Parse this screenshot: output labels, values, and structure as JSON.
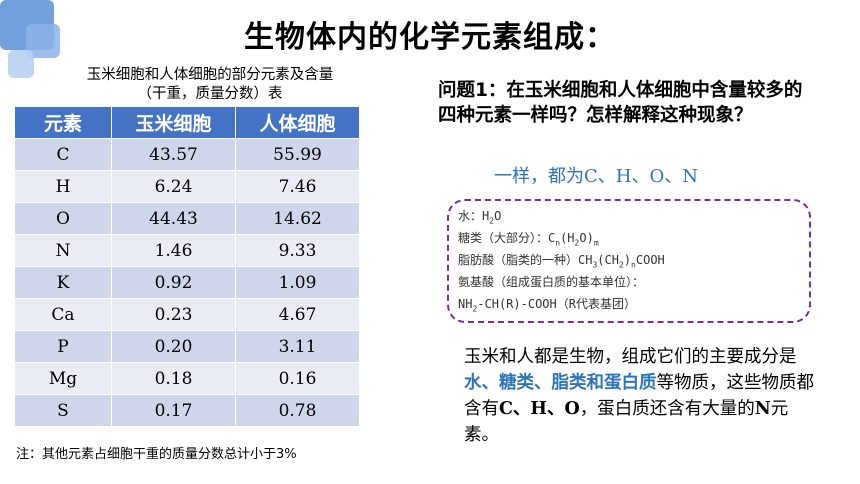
{
  "title": "生物体内的化学元素组成：",
  "table": {
    "caption_line1": "玉米细胞和人体细胞的部分元素及含量",
    "caption_line2": "（干重，质量分数）表",
    "headers": [
      "元素",
      "玉米细胞",
      "人体细胞"
    ],
    "rows": [
      [
        "C",
        "43.57",
        "55.99"
      ],
      [
        "H",
        "6.24",
        "7.46"
      ],
      [
        "O",
        "44.43",
        "14.62"
      ],
      [
        "N",
        "1.46",
        "9.33"
      ],
      [
        "K",
        "0.92",
        "1.09"
      ],
      [
        "Ca",
        "0.23",
        "4.67"
      ],
      [
        "P",
        "0.20",
        "3.11"
      ],
      [
        "Mg",
        "0.18",
        "0.16"
      ],
      [
        "S",
        "0.17",
        "0.78"
      ]
    ],
    "header_color": "#4472c4"
  },
  "note": "注：其他元素占细胞干重的质量分数总计小于3%",
  "question": "问题1：在玉米细胞和人体细胞中含量较多的四种元素一样吗？怎样解释这种现象？",
  "answer": "一样，都为C、H、O、N",
  "formulas": {
    "water_label": "水：",
    "water_formula": "H",
    "water_sub": "2",
    "water_tail": "O",
    "sugar_label": "糖类（大部分）：",
    "sugar_a": "C",
    "sugar_sub_n": "n",
    "sugar_b": "(H",
    "sugar_sub_2": "2",
    "sugar_c": "O)",
    "sugar_sub_m": "m",
    "fat_label": "脂肪酸（脂类的一种）",
    "fat_a": "CH",
    "fat_sub_3": "3",
    "fat_b": "(CH",
    "fat_sub_2": "2",
    "fat_c": ")",
    "fat_sub_n": "n",
    "fat_d": "COOH",
    "amino_label": "氨基酸（组成蛋白质的基本单位）：",
    "amino_a": "NH",
    "amino_sub": "2",
    "amino_b": "-CH(R)-COOH（R代表基团）"
  },
  "paragraph": {
    "p1": "玉米和人都是生物，组成它们的主要成分是",
    "highlight": "水、糖类、脂类和蛋白质",
    "p2": "等物质，这些物质都含有",
    "b1": "C、H、O",
    "p3": "，蛋白质还含有大量的",
    "b2": "N",
    "p4": "元素。",
    "highlight_color": "#2e75b6"
  }
}
